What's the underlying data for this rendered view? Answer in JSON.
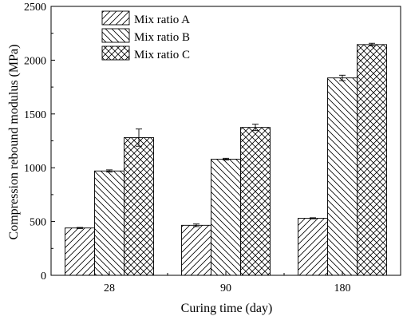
{
  "chart_data": {
    "type": "bar",
    "title": "",
    "xlabel": "Curing time (day)",
    "ylabel": "Compression rebound  modulus (MPa)",
    "categories": [
      "28",
      "90",
      "180"
    ],
    "ylim": [
      0,
      2500
    ],
    "yticks": [
      0,
      500,
      1000,
      1500,
      2000,
      2500
    ],
    "series": [
      {
        "name": "Mix ratio A",
        "pattern": "diagonal-up",
        "values": [
          440,
          465,
          530
        ],
        "errors": [
          5,
          12,
          5
        ]
      },
      {
        "name": "Mix ratio B",
        "pattern": "diagonal-down",
        "values": [
          970,
          1080,
          1835
        ],
        "errors": [
          10,
          8,
          25
        ]
      },
      {
        "name": "Mix ratio C",
        "pattern": "cross-hatch",
        "values": [
          1280,
          1375,
          2145
        ],
        "errors": [
          80,
          30,
          12
        ]
      }
    ],
    "legend_position": "top-left",
    "grid": false,
    "error_bars": true
  }
}
